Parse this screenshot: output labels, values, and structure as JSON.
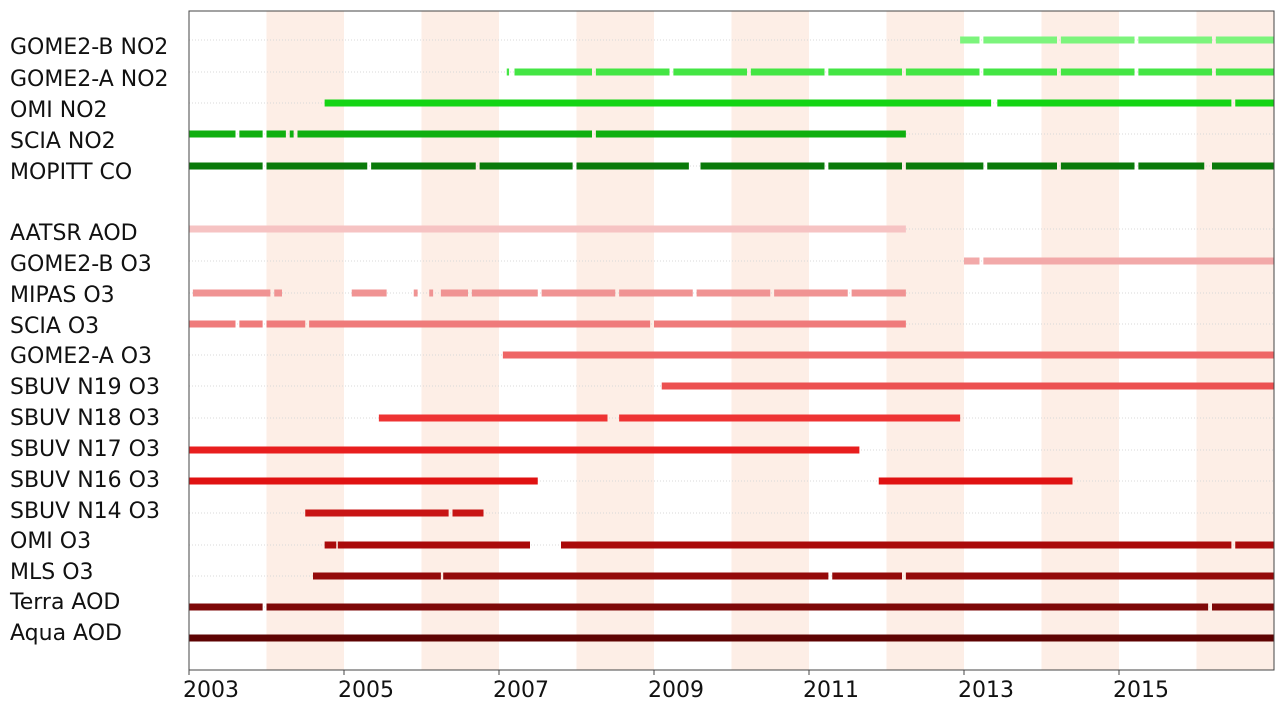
{
  "chart_data": {
    "type": "timeline",
    "x_axis": {
      "range": [
        2003.0,
        2017.0
      ],
      "tick_values": [
        2003,
        2005,
        2007,
        2009,
        2011,
        2013,
        2015
      ],
      "tick_labels": [
        "2003",
        "2005",
        "2007",
        "2009",
        "2011",
        "2013",
        "2015"
      ]
    },
    "shaded_bands": [
      [
        2004,
        2005
      ],
      [
        2006,
        2007
      ],
      [
        2008,
        2009
      ],
      [
        2010,
        2011
      ],
      [
        2012,
        2013
      ],
      [
        2014,
        2015
      ],
      [
        2016,
        2017
      ]
    ],
    "series": [
      {
        "name": "GOME2-B NO2",
        "color": "#7CF47C",
        "segments": [
          [
            2012.95,
            2013.2
          ],
          [
            2013.25,
            2014.2
          ],
          [
            2014.25,
            2015.2
          ],
          [
            2015.25,
            2016.2
          ],
          [
            2016.25,
            2017.0
          ]
        ]
      },
      {
        "name": "GOME2-A NO2",
        "color": "#44E544",
        "segments": [
          [
            2007.1,
            2007.13
          ],
          [
            2007.2,
            2008.2
          ],
          [
            2008.25,
            2009.2
          ],
          [
            2009.25,
            2010.2
          ],
          [
            2010.25,
            2011.2
          ],
          [
            2011.25,
            2012.2
          ],
          [
            2012.25,
            2013.2
          ],
          [
            2013.25,
            2014.2
          ],
          [
            2014.25,
            2015.2
          ],
          [
            2015.25,
            2016.2
          ],
          [
            2016.25,
            2017.0
          ]
        ]
      },
      {
        "name": "OMI NO2",
        "color": "#14D414",
        "segments": [
          [
            2004.75,
            2013.35
          ],
          [
            2013.43,
            2016.45
          ],
          [
            2016.5,
            2017.0
          ]
        ]
      },
      {
        "name": "SCIA NO2",
        "color": "#0FAF0F",
        "segments": [
          [
            2003.0,
            2003.6
          ],
          [
            2003.65,
            2003.95
          ],
          [
            2004.0,
            2004.25
          ],
          [
            2004.3,
            2004.35
          ],
          [
            2004.4,
            2008.2
          ],
          [
            2008.25,
            2012.25
          ]
        ]
      },
      {
        "name": "MOPITT CO",
        "color": "#0A7A0A",
        "segments": [
          [
            2003.0,
            2003.95
          ],
          [
            2004.0,
            2005.3
          ],
          [
            2005.35,
            2006.7
          ],
          [
            2006.75,
            2007.95
          ],
          [
            2008.0,
            2009.45
          ],
          [
            2009.6,
            2011.2
          ],
          [
            2011.25,
            2012.2
          ],
          [
            2012.25,
            2013.25
          ],
          [
            2013.3,
            2014.2
          ],
          [
            2014.25,
            2015.2
          ],
          [
            2015.25,
            2016.1
          ],
          [
            2016.2,
            2017.0
          ]
        ]
      },
      {
        "name": "AATSR AOD",
        "color": "#F6C3C3",
        "segments": [
          [
            2003.0,
            2012.25
          ]
        ]
      },
      {
        "name": "GOME2-B O3",
        "color": "#F2A9A9",
        "segments": [
          [
            2013.0,
            2013.2
          ],
          [
            2013.25,
            2017.0
          ]
        ]
      },
      {
        "name": "MIPAS O3",
        "color": "#F09393",
        "segments": [
          [
            2003.05,
            2004.05
          ],
          [
            2004.1,
            2004.2
          ],
          [
            2005.1,
            2005.55
          ],
          [
            2005.9,
            2005.95
          ],
          [
            2006.1,
            2006.15
          ],
          [
            2006.25,
            2006.6
          ],
          [
            2006.65,
            2007.5
          ],
          [
            2007.55,
            2008.5
          ],
          [
            2008.55,
            2009.5
          ],
          [
            2009.55,
            2010.5
          ],
          [
            2010.55,
            2011.5
          ],
          [
            2011.55,
            2012.25
          ]
        ]
      },
      {
        "name": "SCIA O3",
        "color": "#EF7B7B",
        "segments": [
          [
            2003.0,
            2003.6
          ],
          [
            2003.65,
            2003.95
          ],
          [
            2004.0,
            2004.5
          ],
          [
            2004.55,
            2008.95
          ],
          [
            2009.0,
            2012.25
          ]
        ]
      },
      {
        "name": "GOME2-A O3",
        "color": "#EE6666",
        "segments": [
          [
            2007.05,
            2017.0
          ]
        ]
      },
      {
        "name": "SBUV N19 O3",
        "color": "#EC5151",
        "segments": [
          [
            2009.1,
            2017.0
          ]
        ]
      },
      {
        "name": "SBUV N18 O3",
        "color": "#EE3333",
        "segments": [
          [
            2005.45,
            2008.4
          ],
          [
            2008.55,
            2012.95
          ]
        ]
      },
      {
        "name": "SBUV N17 O3",
        "color": "#E81E1E",
        "segments": [
          [
            2003.0,
            2011.65
          ]
        ]
      },
      {
        "name": "SBUV N16 O3",
        "color": "#E01212",
        "segments": [
          [
            2003.0,
            2007.5
          ],
          [
            2011.9,
            2014.4
          ]
        ]
      },
      {
        "name": "SBUV N14 O3",
        "color": "#C81414",
        "segments": [
          [
            2004.5,
            2006.35
          ],
          [
            2006.4,
            2006.8
          ]
        ]
      },
      {
        "name": "OMI O3",
        "color": "#AA0A0A",
        "segments": [
          [
            2004.75,
            2004.9
          ],
          [
            2004.92,
            2007.4
          ],
          [
            2007.8,
            2016.45
          ],
          [
            2016.5,
            2017.0
          ]
        ]
      },
      {
        "name": "MLS O3",
        "color": "#940A0A",
        "segments": [
          [
            2004.6,
            2006.25
          ],
          [
            2006.28,
            2011.25
          ],
          [
            2011.3,
            2012.2
          ],
          [
            2012.25,
            2017.0
          ]
        ]
      },
      {
        "name": "Terra AOD",
        "color": "#7E0808",
        "segments": [
          [
            2003.0,
            2003.95
          ],
          [
            2004.0,
            2016.15
          ],
          [
            2016.2,
            2017.0
          ]
        ]
      },
      {
        "name": "Aqua AOD",
        "color": "#5E0303",
        "segments": [
          [
            2003.0,
            2017.0
          ]
        ]
      }
    ]
  }
}
